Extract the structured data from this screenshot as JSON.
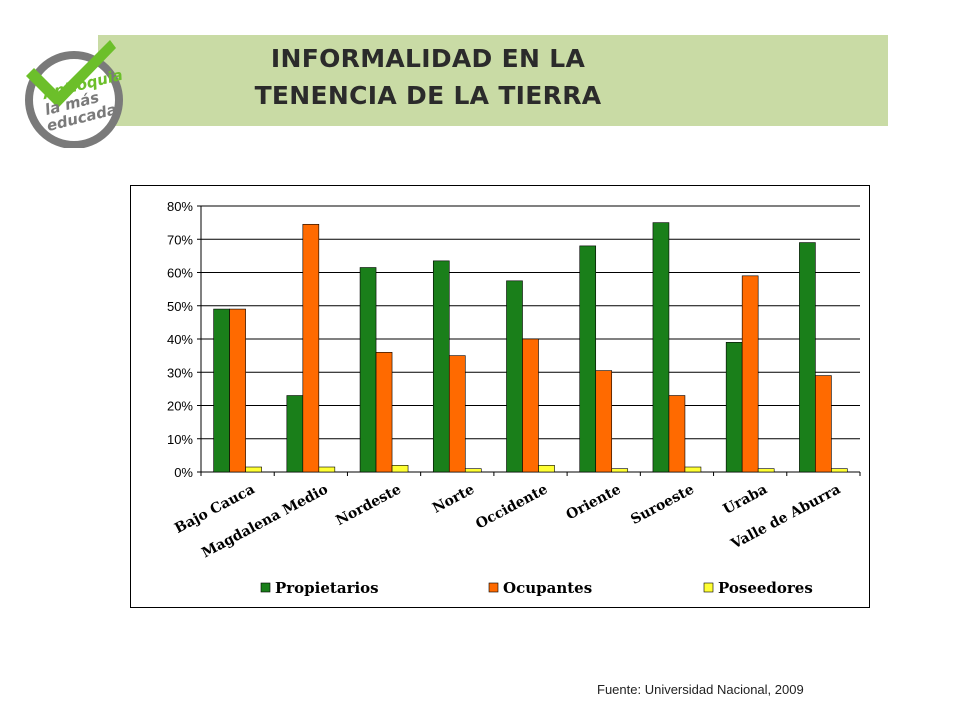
{
  "slide": {
    "title_line1": "INFORMALIDAD EN LA",
    "title_line2": "TENENCIA DE LA TIERRA",
    "logo_text": [
      "Antioquia",
      "la más",
      "educada"
    ],
    "source": "Fuente: Universidad Nacional, 2009"
  },
  "colors": {
    "banner": "#c9dba5",
    "logo_green": "#6cbf2a",
    "logo_gray": "#7a7a7a"
  },
  "chart_data": {
    "type": "bar",
    "categories": [
      "Bajo Cauca",
      "Magdalena Medio",
      "Nordeste",
      "Norte",
      "Occidente",
      "Oriente",
      "Suroeste",
      "Uraba",
      "Valle de Aburra"
    ],
    "series": [
      {
        "name": "Propietarios",
        "color": "#1a7f1a",
        "values": [
          49,
          23,
          61.5,
          63.5,
          57.5,
          68,
          75,
          39,
          69
        ]
      },
      {
        "name": "Ocupantes",
        "color": "#ff6a00",
        "values": [
          49,
          74.5,
          36,
          35,
          40,
          30.5,
          23,
          59,
          29
        ]
      },
      {
        "name": "Poseedores",
        "color": "#ffff33",
        "values": [
          1.5,
          1.5,
          2,
          1,
          2,
          1,
          1.5,
          1,
          1
        ]
      }
    ],
    "ylim": [
      0,
      80
    ],
    "yticks": [
      "0%",
      "10%",
      "20%",
      "30%",
      "40%",
      "50%",
      "60%",
      "70%",
      "80%"
    ],
    "grid": true,
    "legend_position": "bottom"
  }
}
